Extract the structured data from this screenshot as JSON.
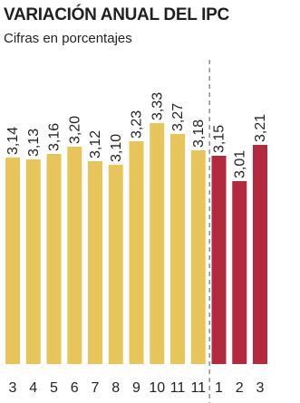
{
  "chart_data": {
    "type": "bar",
    "title": "VARIACIÓN ANUAL DEL IPC",
    "subtitle": "Cifras en porcentajes",
    "categories": [
      "3",
      "4",
      "5",
      "6",
      "7",
      "8",
      "9",
      "10",
      "11",
      "11",
      "1",
      "2",
      "3"
    ],
    "values": [
      3.14,
      3.13,
      3.16,
      3.2,
      3.12,
      3.1,
      3.23,
      3.33,
      3.27,
      3.18,
      3.15,
      3.01,
      3.21
    ],
    "value_labels": [
      "3,14",
      "3,13",
      "3,16",
      "3,20",
      "3,12",
      "3,10",
      "3,23",
      "3,33",
      "3,27",
      "3,18",
      "3,15",
      "3,01",
      "3,21"
    ],
    "bar_colors": [
      "#e8c55a",
      "#e8c55a",
      "#e8c55a",
      "#e8c55a",
      "#e8c55a",
      "#e8c55a",
      "#e8c55a",
      "#e8c55a",
      "#e8c55a",
      "#e8c55a",
      "#b3293d",
      "#b3293d",
      "#b3293d"
    ],
    "divider_after_index": 9,
    "ylim": [
      2.0,
      3.34
    ],
    "xlabel": "",
    "ylabel": "",
    "grid": false,
    "legend": "none"
  }
}
